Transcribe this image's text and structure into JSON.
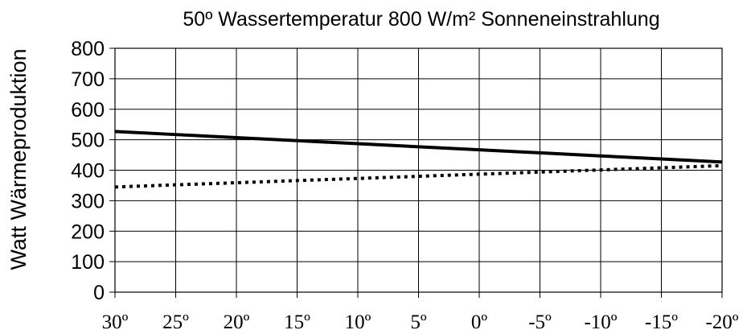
{
  "chart_data": {
    "type": "line",
    "title": "50º Wassertemperatur 800 W/m² Sonneneinstrahlung",
    "xlabel": "",
    "ylabel": "Watt Wärmeproduktion",
    "categories": [
      "30º",
      "25º",
      "20º",
      "15º",
      "10º",
      "5º",
      "0º",
      "-5º",
      "-10º",
      "-15º",
      "-20º"
    ],
    "x": [
      30,
      25,
      20,
      15,
      10,
      5,
      0,
      -5,
      -10,
      -15,
      -20
    ],
    "yticks": [
      "0",
      "100",
      "200",
      "300",
      "400",
      "500",
      "600",
      "700",
      "800"
    ],
    "ylim": [
      0,
      800
    ],
    "grid": true,
    "series": [
      {
        "style": "solid",
        "color": "#000000",
        "values": [
          527,
          517,
          507,
          497,
          487,
          477,
          467,
          457,
          447,
          437,
          427
        ]
      },
      {
        "style": "dotted",
        "color": "#000000",
        "values": [
          345,
          352,
          359,
          366,
          373,
          380,
          387,
          394,
          401,
          408,
          415
        ]
      }
    ]
  }
}
